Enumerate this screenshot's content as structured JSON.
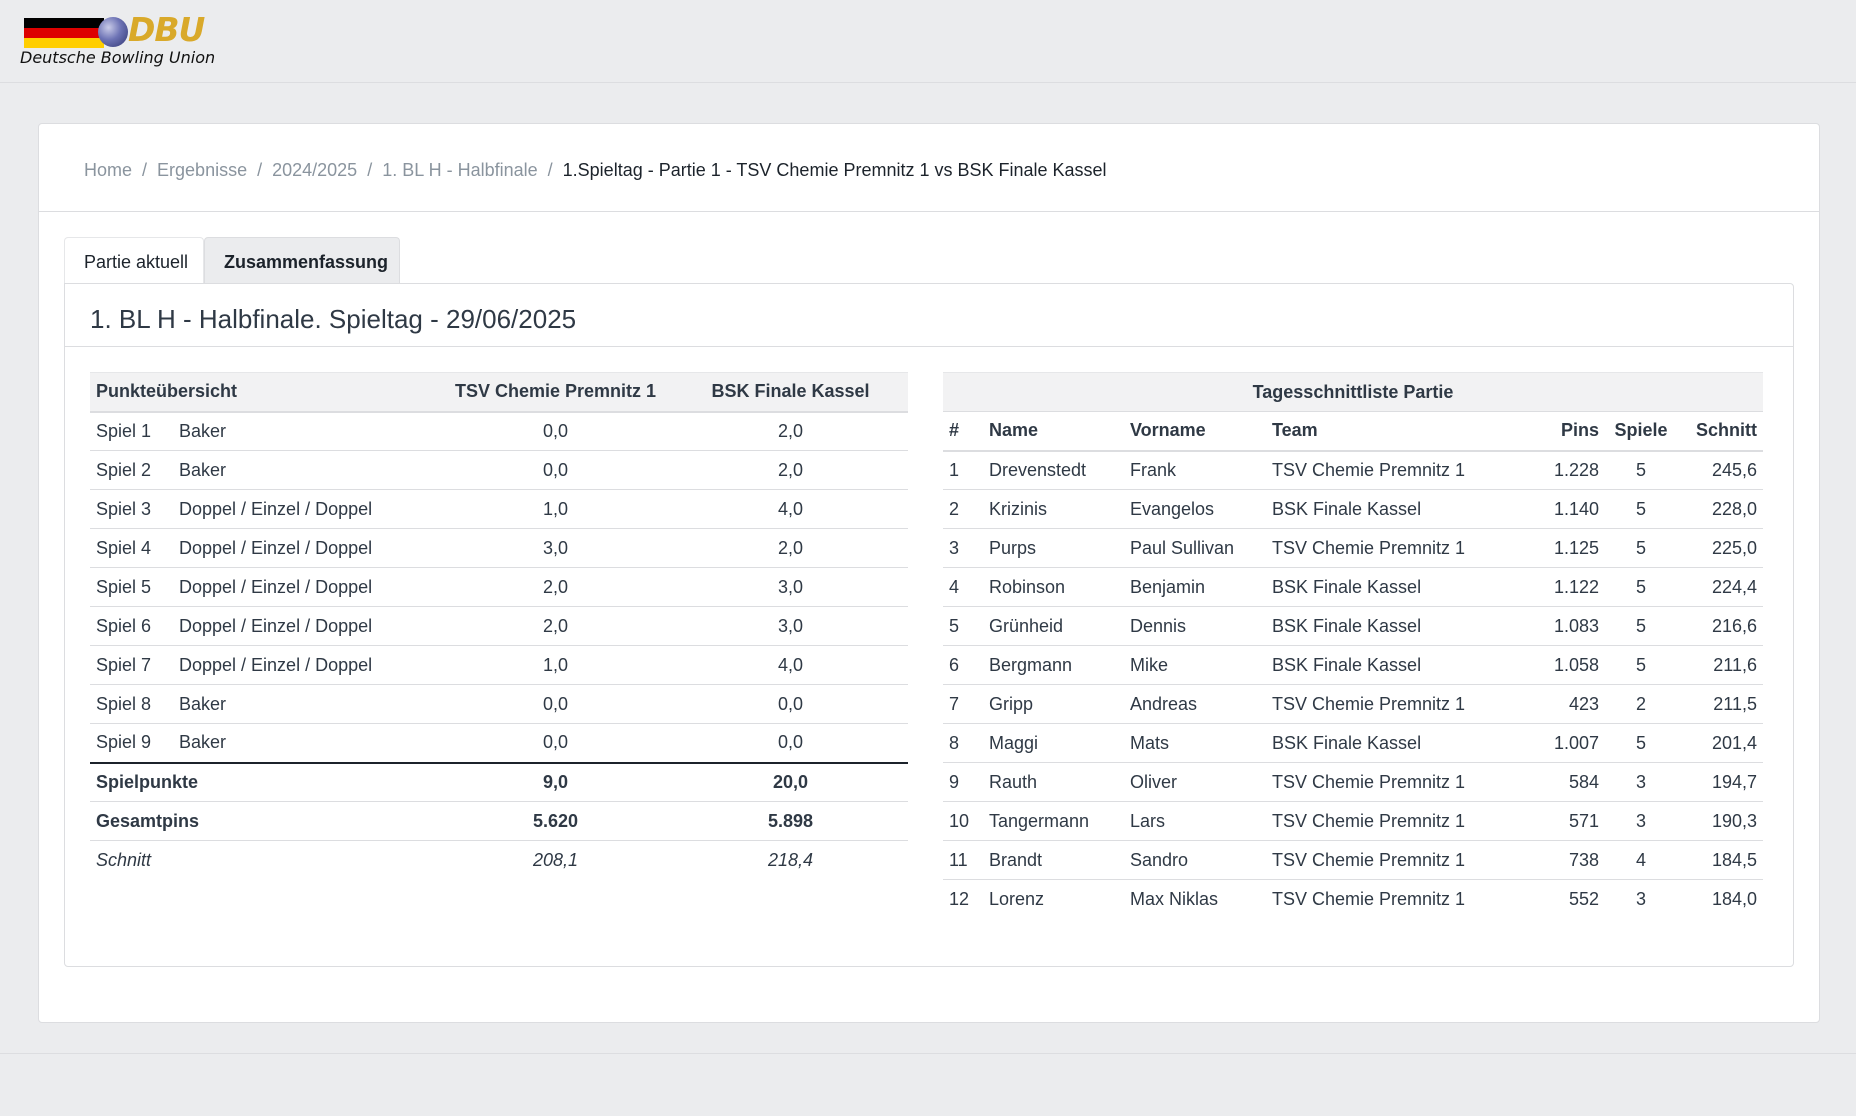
{
  "logo": {
    "brand": "DBU",
    "name": "Deutsche Bowling Union",
    "colors": {
      "flag_black": "#000000",
      "flag_red": "#dd0000",
      "flag_gold": "#ffce00",
      "brand_gold": "#d9a92a"
    }
  },
  "breadcrumb": {
    "items": [
      "Home",
      "Ergebnisse",
      "2024/2025",
      "1. BL H - Halbfinale"
    ],
    "current": "1.Spieltag - Partie 1 - TSV Chemie Premnitz 1 vs BSK Finale Kassel",
    "separator": "/"
  },
  "tabs": [
    {
      "label": "Partie aktuell",
      "active": false
    },
    {
      "label": "Zusammenfassung",
      "active": true
    }
  ],
  "title": "1. BL H - Halbfinale. Spieltag - 29/06/2025",
  "points_table": {
    "headers": [
      "Punkteübersicht",
      "TSV Chemie Premnitz 1",
      "BSK Finale Kassel"
    ],
    "rows": [
      {
        "game": "Spiel 1",
        "mode": "Baker",
        "home": "0,0",
        "away": "2,0"
      },
      {
        "game": "Spiel 2",
        "mode": "Baker",
        "home": "0,0",
        "away": "2,0"
      },
      {
        "game": "Spiel 3",
        "mode": "Doppel / Einzel / Doppel",
        "home": "1,0",
        "away": "4,0"
      },
      {
        "game": "Spiel 4",
        "mode": "Doppel / Einzel / Doppel",
        "home": "3,0",
        "away": "2,0"
      },
      {
        "game": "Spiel 5",
        "mode": "Doppel / Einzel / Doppel",
        "home": "2,0",
        "away": "3,0"
      },
      {
        "game": "Spiel 6",
        "mode": "Doppel / Einzel / Doppel",
        "home": "2,0",
        "away": "3,0"
      },
      {
        "game": "Spiel 7",
        "mode": "Doppel / Einzel / Doppel",
        "home": "1,0",
        "away": "4,0"
      },
      {
        "game": "Spiel 8",
        "mode": "Baker",
        "home": "0,0",
        "away": "0,0"
      },
      {
        "game": "Spiel 9",
        "mode": "Baker",
        "home": "0,0",
        "away": "0,0"
      }
    ],
    "totals": [
      {
        "label": "Spielpunkte",
        "home": "9,0",
        "away": "20,0",
        "style": "bold"
      },
      {
        "label": "Gesamtpins",
        "home": "5.620",
        "away": "5.898",
        "style": "bold"
      },
      {
        "label": "Schnitt",
        "home": "208,1",
        "away": "218,4",
        "style": "italic"
      }
    ]
  },
  "average_table": {
    "title": "Tagesschnittliste Partie",
    "headers": [
      "#",
      "Name",
      "Vorname",
      "Team",
      "Pins",
      "Spiele",
      "Schnitt"
    ],
    "rows": [
      {
        "rank": "1",
        "name": "Drevenstedt",
        "first": "Frank",
        "team": "TSV Chemie Premnitz 1",
        "pins": "1.228",
        "games": "5",
        "avg": "245,6"
      },
      {
        "rank": "2",
        "name": "Krizinis",
        "first": "Evangelos",
        "team": "BSK Finale Kassel",
        "pins": "1.140",
        "games": "5",
        "avg": "228,0"
      },
      {
        "rank": "3",
        "name": "Purps",
        "first": "Paul Sullivan",
        "team": "TSV Chemie Premnitz 1",
        "pins": "1.125",
        "games": "5",
        "avg": "225,0"
      },
      {
        "rank": "4",
        "name": "Robinson",
        "first": "Benjamin",
        "team": "BSK Finale Kassel",
        "pins": "1.122",
        "games": "5",
        "avg": "224,4"
      },
      {
        "rank": "5",
        "name": "Grünheid",
        "first": "Dennis",
        "team": "BSK Finale Kassel",
        "pins": "1.083",
        "games": "5",
        "avg": "216,6"
      },
      {
        "rank": "6",
        "name": "Bergmann",
        "first": "Mike",
        "team": "BSK Finale Kassel",
        "pins": "1.058",
        "games": "5",
        "avg": "211,6"
      },
      {
        "rank": "7",
        "name": "Gripp",
        "first": "Andreas",
        "team": "TSV Chemie Premnitz 1",
        "pins": "423",
        "games": "2",
        "avg": "211,5"
      },
      {
        "rank": "8",
        "name": "Maggi",
        "first": "Mats",
        "team": "BSK Finale Kassel",
        "pins": "1.007",
        "games": "5",
        "avg": "201,4"
      },
      {
        "rank": "9",
        "name": "Rauth",
        "first": "Oliver",
        "team": "TSV Chemie Premnitz 1",
        "pins": "584",
        "games": "3",
        "avg": "194,7"
      },
      {
        "rank": "10",
        "name": "Tangermann",
        "first": "Lars",
        "team": "TSV Chemie Premnitz 1",
        "pins": "571",
        "games": "3",
        "avg": "190,3"
      },
      {
        "rank": "11",
        "name": "Brandt",
        "first": "Sandro",
        "team": "TSV Chemie Premnitz 1",
        "pins": "738",
        "games": "4",
        "avg": "184,5"
      },
      {
        "rank": "12",
        "name": "Lorenz",
        "first": "Max Niklas",
        "team": "TSV Chemie Premnitz 1",
        "pins": "552",
        "games": "3",
        "avg": "184,0"
      }
    ]
  }
}
